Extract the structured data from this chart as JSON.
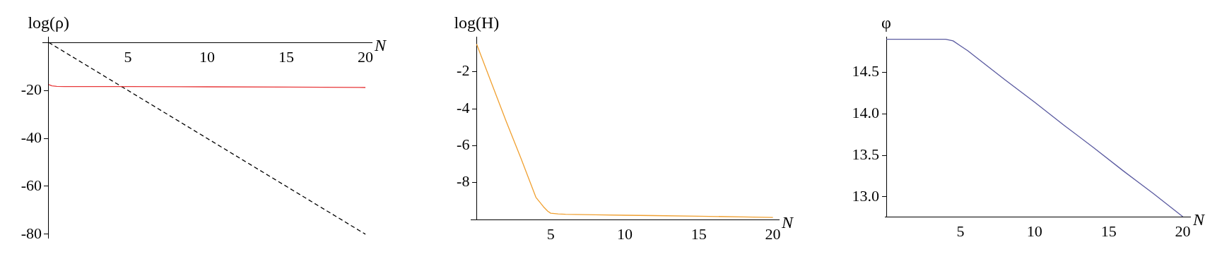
{
  "chart_data": [
    {
      "type": "line",
      "ylabel": "log(ρ)",
      "xlabel": "N",
      "xlim": [
        -0.4,
        20.4
      ],
      "ylim": [
        -81.5,
        2.4
      ],
      "xticks": [
        5,
        10,
        15,
        20
      ],
      "yticks": [
        -20,
        -40,
        -60,
        -80
      ],
      "grid": false,
      "legend": false,
      "marker": "none",
      "series": [
        {
          "color": "#e8383a",
          "x": [
            0,
            0.2,
            0.5,
            1,
            2,
            5,
            10,
            15,
            20
          ],
          "values": [
            -17.6,
            -18.1,
            -18.3,
            -18.4,
            -18.4,
            -18.4,
            -18.5,
            -18.6,
            -18.8
          ],
          "line_style": "solid"
        },
        {
          "color": "#000000",
          "x": [
            0,
            20
          ],
          "values": [
            0,
            -80
          ],
          "line_style": "dashed"
        }
      ]
    },
    {
      "type": "line",
      "ylabel": "log(H)",
      "xlabel": "N",
      "xlim": [
        -0.4,
        20.4
      ],
      "ylim": [
        -10,
        -0.1
      ],
      "xticks": [
        5,
        10,
        15,
        20
      ],
      "yticks": [
        -2,
        -4,
        -6,
        -8
      ],
      "grid": false,
      "legend": false,
      "marker": "none",
      "series": [
        {
          "color": "#f0a030",
          "x": [
            0,
            1,
            2,
            3,
            4,
            4.5,
            4.8,
            5,
            5.5,
            6,
            8,
            10,
            12,
            15,
            18,
            20
          ],
          "values": [
            -0.5,
            -2.6,
            -4.7,
            -6.7,
            -8.8,
            -9.3,
            -9.55,
            -9.66,
            -9.7,
            -9.72,
            -9.75,
            -9.77,
            -9.79,
            -9.82,
            -9.86,
            -9.89
          ],
          "line_style": "solid"
        }
      ]
    },
    {
      "type": "line",
      "ylabel": "φ",
      "xlabel": "N",
      "xlim": [
        -0.1,
        20.5
      ],
      "ylim": [
        12.76,
        14.93
      ],
      "xticks": [
        5,
        10,
        15,
        20
      ],
      "yticks": [
        {
          "value": 13,
          "label": "13.0"
        },
        {
          "value": 13.5,
          "label": "13.5"
        },
        {
          "value": 14,
          "label": "14.0"
        },
        {
          "value": 14.5,
          "label": "14.5"
        }
      ],
      "grid": false,
      "legend": false,
      "marker": "none",
      "series": [
        {
          "color": "#5a5aa0",
          "x": [
            0,
            2,
            4,
            4.5,
            5,
            5.5,
            6,
            8,
            10,
            12,
            14,
            16,
            18,
            20
          ],
          "values": [
            14.9,
            14.9,
            14.9,
            14.88,
            14.82,
            14.76,
            14.69,
            14.41,
            14.14,
            13.86,
            13.59,
            13.31,
            13.04,
            12.76
          ],
          "line_style": "solid"
        }
      ]
    }
  ]
}
